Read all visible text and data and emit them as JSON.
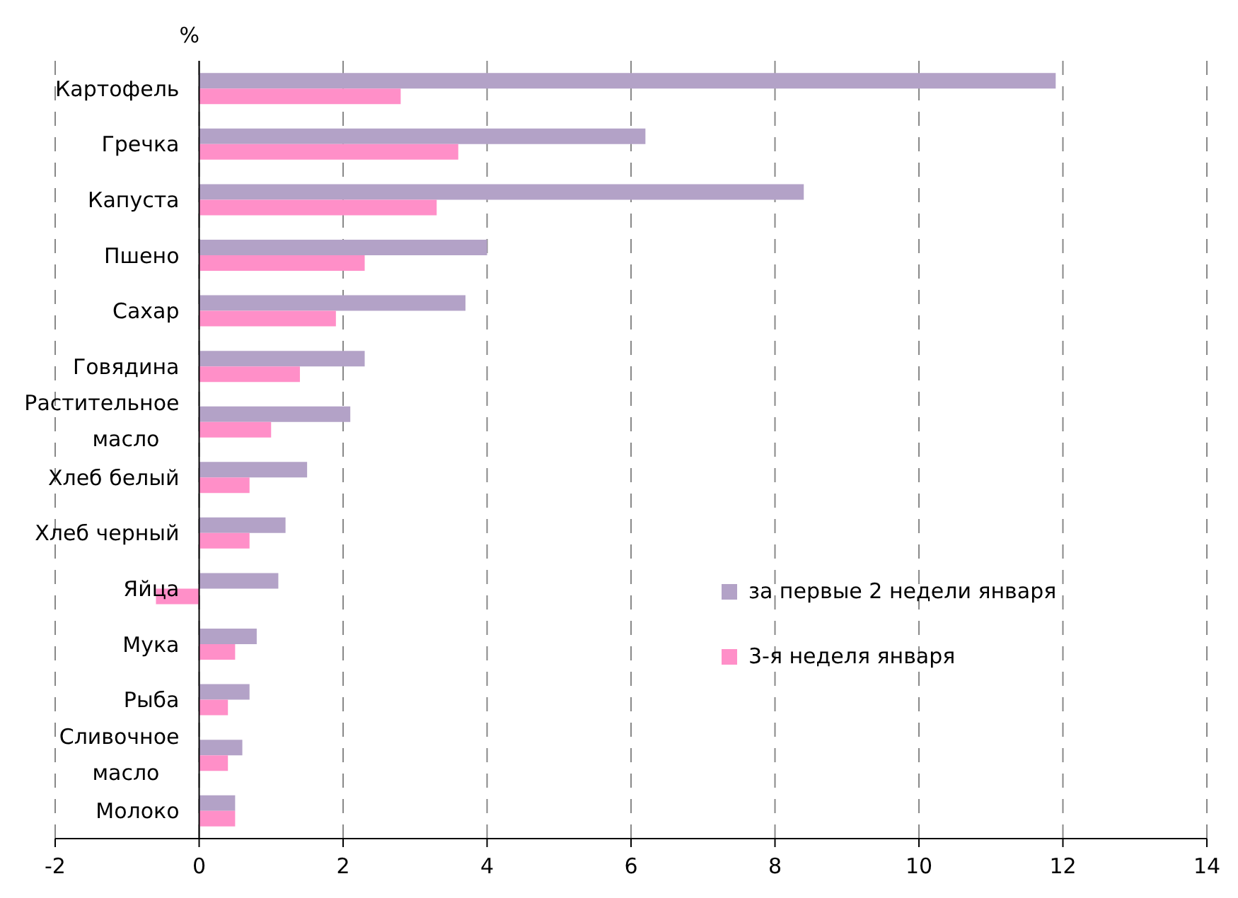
{
  "chart_data": {
    "type": "bar",
    "orientation": "horizontal",
    "xlabel": "%",
    "categories": [
      "Картофель",
      "Гречка",
      "Капуста",
      "Пшено",
      "Сахар",
      "Говядина",
      "Растительное масло",
      "Хлеб белый",
      "Хлеб черный",
      "Яйца",
      "Мука",
      "Рыба",
      "Сливочное масло",
      "Молоко"
    ],
    "series": [
      {
        "name": "за первые 2 недели января",
        "color": "#b3a2c7",
        "values": [
          11.9,
          6.2,
          8.4,
          4.0,
          3.7,
          2.3,
          2.1,
          1.5,
          1.2,
          1.1,
          0.8,
          0.7,
          0.6,
          0.5
        ]
      },
      {
        "name": "3-я неделя января",
        "color": "#ff8fc8",
        "values": [
          2.8,
          3.6,
          3.3,
          2.3,
          1.9,
          1.4,
          1.0,
          0.7,
          0.7,
          -0.6,
          0.5,
          0.4,
          0.4,
          0.5
        ]
      }
    ],
    "xlim": [
      -2,
      14
    ],
    "xticks": [
      -2,
      0,
      2,
      4,
      6,
      8,
      10,
      12,
      14
    ],
    "grid": "x",
    "legend": "right"
  }
}
